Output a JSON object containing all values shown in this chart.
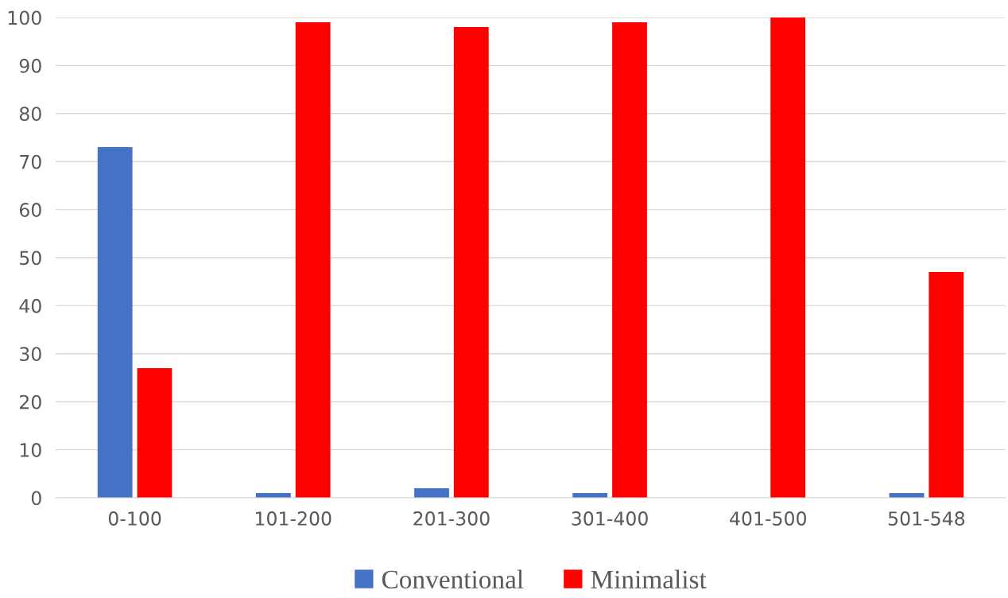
{
  "chart_data": {
    "type": "bar",
    "categories": [
      "0-100",
      "101-200",
      "201-300",
      "301-400",
      "401-500",
      "501-548"
    ],
    "series": [
      {
        "name": "Conventional",
        "color": "#4472c4",
        "values": [
          73,
          1,
          2,
          1,
          0,
          1
        ]
      },
      {
        "name": "Minimalist",
        "color": "#ff0000",
        "values": [
          27,
          99,
          98,
          99,
          100,
          47
        ]
      }
    ],
    "ylim": [
      0,
      100
    ],
    "yticks": [
      0,
      10,
      20,
      30,
      40,
      50,
      60,
      70,
      80,
      90,
      100
    ],
    "grid": "y",
    "legend": "bottom"
  }
}
